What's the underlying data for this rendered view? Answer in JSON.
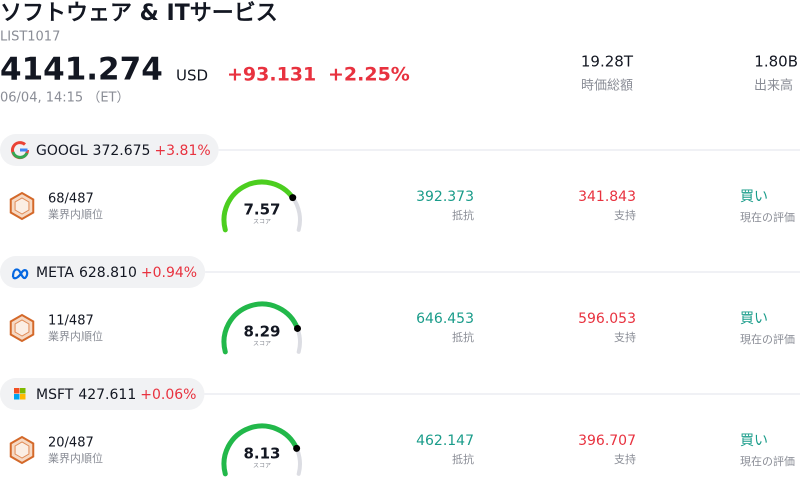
{
  "header": {
    "title": "ソフトウェア & ITサービス",
    "code": "LIST1017",
    "price": "4141.274",
    "currency": "USD",
    "change": "+93.131",
    "change_pct": "+2.25%",
    "timestamp": "06/04, 14:15 （ET）"
  },
  "stats": [
    {
      "value": "19.28T",
      "label": "時価総額"
    },
    {
      "value": "1.80B",
      "label": "出来高"
    }
  ],
  "score_range": [
    0,
    10
  ],
  "stocks": [
    {
      "ticker": "GOOGL",
      "price": "372.675",
      "change": "+3.81%",
      "rank": "68/487",
      "rank_label": "業界内順位",
      "score": 7.57,
      "score_label": "スコア",
      "color": "#4cce1f",
      "resistance": "392.373",
      "resistance_label": "抵抗",
      "support": "341.843",
      "support_label": "支持",
      "rating": "買い",
      "rating_label": "現在の評価"
    },
    {
      "ticker": "META",
      "price": "628.810",
      "change": "+0.94%",
      "rank": "11/487",
      "rank_label": "業界内順位",
      "score": 8.29,
      "score_label": "スコア",
      "color": "#22b84a",
      "resistance": "646.453",
      "resistance_label": "抵抗",
      "support": "596.053",
      "support_label": "支持",
      "rating": "買い",
      "rating_label": "現在の評価"
    },
    {
      "ticker": "MSFT",
      "price": "427.611",
      "change": "+0.06%",
      "rank": "20/487",
      "rank_label": "業界内順位",
      "score": 8.13,
      "score_label": "スコア",
      "color": "#22b84a",
      "resistance": "462.147",
      "resistance_label": "抵抗",
      "support": "396.707",
      "support_label": "支持",
      "rating": "買い",
      "rating_label": "現在の評価"
    }
  ]
}
